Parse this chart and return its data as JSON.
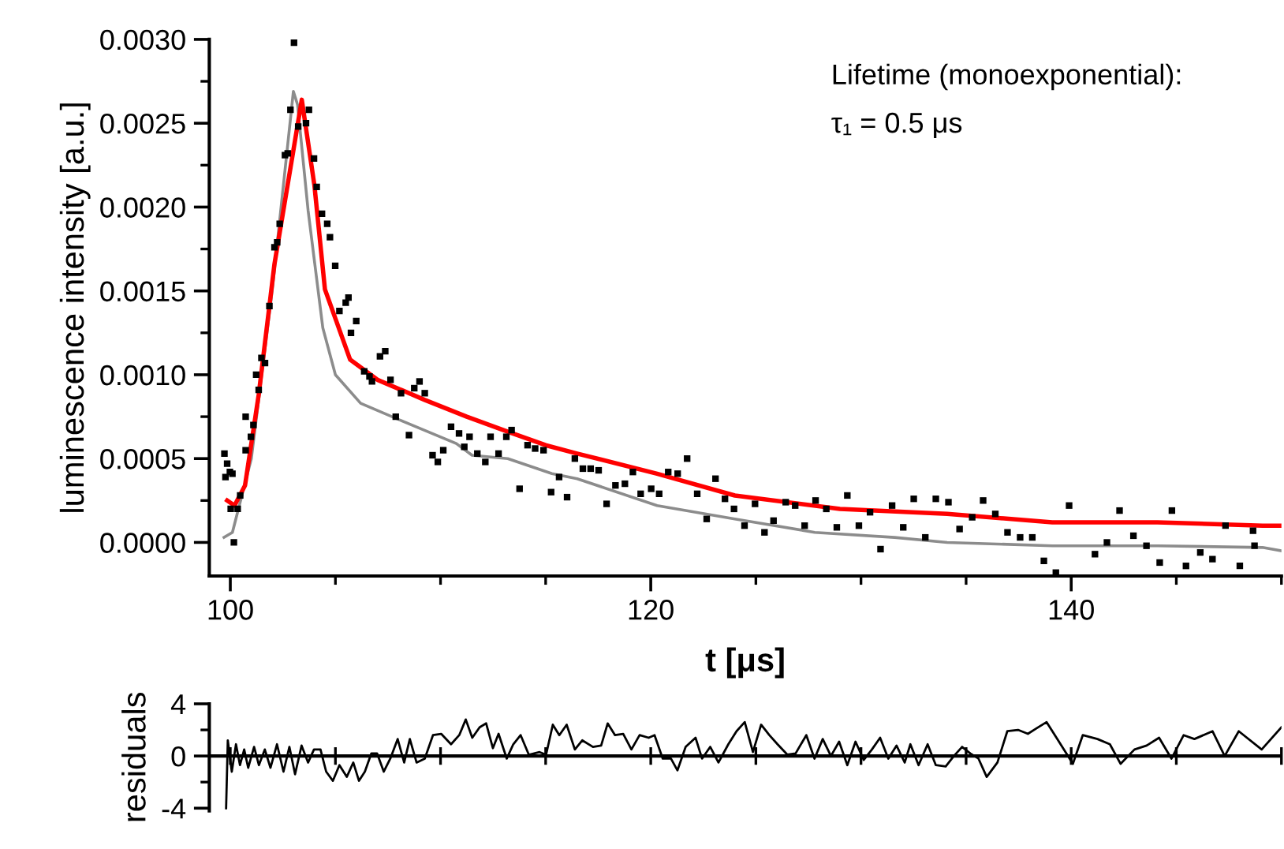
{
  "chart_data": [
    {
      "type": "scatter",
      "xlabel": "t [μs]",
      "ylabel": "luminescence intensity [a.u.]",
      "annotations": [
        "Lifetime (monoexponential):",
        "τ₁ = 0.5 μs"
      ],
      "xlim": [
        99,
        150
      ],
      "xticks": [
        100,
        {
          "value": 105,
          "label": null
        },
        {
          "value": 110,
          "label": null
        },
        {
          "value": 115,
          "label": null
        },
        120,
        {
          "value": 125,
          "label": null
        },
        {
          "value": 130,
          "label": null
        },
        {
          "value": 135,
          "label": null
        },
        140,
        {
          "value": 145,
          "label": null
        },
        {
          "value": 150,
          "label": null
        }
      ],
      "ylim": [
        -0.0002,
        0.003
      ],
      "yticks": [
        {
          "value": 0,
          "label": "0.0000"
        },
        {
          "value": 0.00025,
          "label": null
        },
        {
          "value": 0.0005,
          "label": "0.0005"
        },
        {
          "value": 0.00075,
          "label": null
        },
        {
          "value": 0.001,
          "label": "0.0010"
        },
        {
          "value": 0.00125,
          "label": null
        },
        {
          "value": 0.0015,
          "label": "0.0015"
        },
        {
          "value": 0.00175,
          "label": null
        },
        {
          "value": 0.002,
          "label": "0.0020"
        },
        {
          "value": 0.00225,
          "label": null
        },
        {
          "value": 0.0025,
          "label": "0.0025"
        },
        {
          "value": 0.00275,
          "label": null
        },
        {
          "value": 0.003,
          "label": "0.0030"
        }
      ],
      "grid": false,
      "legend": false,
      "series": [
        {
          "type": "line",
          "color": "#8c8c8c",
          "x": [
            99.7,
            100.1,
            101.0,
            102.0,
            103.0,
            103.2,
            103.7,
            104.4,
            105.0,
            106.2,
            108.25,
            110.75,
            111.5,
            113.2,
            115.3,
            116.5,
            120.3,
            124.0,
            127.8,
            131.6,
            134.1,
            139.1,
            144.1,
            149.1,
            150
          ],
          "values": [
            3e-05,
            6e-05,
            0.0005,
            0.00151,
            0.00269,
            0.00261,
            0.00198,
            0.00128,
            0.001,
            0.00083,
            0.00072,
            0.00059,
            0.00052,
            0.0005,
            0.00041,
            0.00038,
            0.00022,
            0.00014,
            6e-05,
            3e-05,
            0.0,
            -2e-05,
            -2e-05,
            -3e-05,
            -5e-05
          ]
        },
        {
          "type": "scatter",
          "marker": "square",
          "color": "#000000",
          "x": [
            99.72,
            99.85,
            99.77,
            99.98,
            100.1,
            100.17,
            100.02,
            100.35,
            100.47,
            100.73,
            100.73,
            100.98,
            101.1,
            101.23,
            101.35,
            101.48,
            101.65,
            101.86,
            102.1,
            102.23,
            102.35,
            102.6,
            102.73,
            102.86,
            103.03,
            103.23,
            103.6,
            103.74,
            103.98,
            104.11,
            104.36,
            104.61,
            104.74,
            104.99,
            105.19,
            105.49,
            105.62,
            105.74,
            105.99,
            106.37,
            106.62,
            106.74,
            107.12,
            107.37,
            107.62,
            107.87,
            108.12,
            108.5,
            108.75,
            109.0,
            109.25,
            109.62,
            109.87,
            110.13,
            110.5,
            110.88,
            111.13,
            111.38,
            111.75,
            112.13,
            112.38,
            112.76,
            113.13,
            113.38,
            113.76,
            114.14,
            114.5,
            114.9,
            115.26,
            115.64,
            116.02,
            116.39,
            116.77,
            117.14,
            117.52,
            117.9,
            118.32,
            118.77,
            119.15,
            119.52,
            120.02,
            120.4,
            120.83,
            121.28,
            121.73,
            122.21,
            122.66,
            123.08,
            123.53,
            123.96,
            124.46,
            124.96,
            125.41,
            125.84,
            126.42,
            126.87,
            127.32,
            127.84,
            128.35,
            128.85,
            129.35,
            129.9,
            130.43,
            130.93,
            131.48,
            132.01,
            132.51,
            133.06,
            133.56,
            134.16,
            134.69,
            135.29,
            135.81,
            136.39,
            136.97,
            137.57,
            138.15,
            138.7,
            139.27,
            139.9,
            141.13,
            141.7,
            142.3,
            142.96,
            143.58,
            144.21,
            144.79,
            145.46,
            146.14,
            146.72,
            147.34,
            148.02,
            148.65,
            148.72
          ],
          "values": [
            0.00053,
            0.00047,
            0.00039,
            0.00042,
            0.00041,
            0.0,
            0.0002,
            0.0002,
            0.00028,
            0.00055,
            0.00075,
            0.00063,
            0.0007,
            0.001,
            0.00091,
            0.0011,
            0.00107,
            0.00141,
            0.00176,
            0.00179,
            0.0019,
            0.00231,
            0.00232,
            0.00258,
            0.00298,
            0.00248,
            0.0025,
            0.00258,
            0.00229,
            0.00212,
            0.00196,
            0.0019,
            0.00182,
            0.00165,
            0.00138,
            0.00143,
            0.00146,
            0.00125,
            0.00132,
            0.00102,
            0.00099,
            0.00096,
            0.00111,
            0.00114,
            0.00097,
            0.00075,
            0.00089,
            0.00064,
            0.00092,
            0.00096,
            0.00089,
            0.00052,
            0.00048,
            0.00055,
            0.00069,
            0.00065,
            0.00057,
            0.00063,
            0.00053,
            0.00048,
            0.00063,
            0.00053,
            0.00063,
            0.00067,
            0.00032,
            0.00058,
            0.00056,
            0.00055,
            0.0003,
            0.00039,
            0.00027,
            0.0005,
            0.00044,
            0.00044,
            0.00043,
            0.00023,
            0.00034,
            0.00035,
            0.00042,
            0.00029,
            0.00032,
            0.00029,
            0.00042,
            0.00041,
            0.0005,
            0.00029,
            0.00014,
            0.00038,
            0.00026,
            0.0002,
            0.0001,
            0.00023,
            6e-05,
            0.00013,
            0.00024,
            0.00022,
            0.0001,
            0.00025,
            0.0002,
            9e-05,
            0.00028,
            0.0001,
            0.00018,
            -4e-05,
            0.00022,
            9e-05,
            0.00026,
            3e-05,
            0.00026,
            0.00024,
            8e-05,
            0.00015,
            0.00025,
            0.00017,
            6e-05,
            3e-05,
            3e-05,
            -0.00011,
            -0.00018,
            0.00022,
            -7e-05,
            0.0,
            0.00019,
            4e-05,
            -2e-05,
            -0.00012,
            0.00019,
            -0.00014,
            -6e-05,
            -0.0001,
            0.0001,
            -0.00014,
            7e-05,
            -2e-05
          ]
        },
        {
          "type": "line",
          "color": "#ff0000",
          "x": [
            99.85,
            100.2,
            100.7,
            101.35,
            102.1,
            103.4,
            104.0,
            104.5,
            105.7,
            107.0,
            109.25,
            111.25,
            113.2,
            115.0,
            116.5,
            120.3,
            124.0,
            129.0,
            134.1,
            139.1,
            144.1,
            149.1,
            150
          ],
          "values": [
            0.00025,
            0.00022,
            0.00034,
            0.00088,
            0.00166,
            0.00264,
            0.00213,
            0.00151,
            0.00109,
            0.00097,
            0.00085,
            0.00075,
            0.00066,
            0.00058,
            0.00053,
            0.00041,
            0.00028,
            0.0002,
            0.00017,
            0.00012,
            0.00012,
            0.0001,
            0.0001
          ]
        }
      ]
    },
    {
      "type": "line",
      "ylabel": "residuals",
      "tick_labels": "y",
      "grid": false,
      "legend": false,
      "line_style": "solid",
      "ref_lines": [
        {
          "axis": "y",
          "value": 0,
          "color": "#000000"
        }
      ],
      "xlim": [
        99,
        150
      ],
      "xticks": [
        {
          "value": 100,
          "label": null
        },
        {
          "value": 105,
          "label": null
        },
        {
          "value": 110,
          "label": null
        },
        {
          "value": 115,
          "label": null
        },
        {
          "value": 120,
          "label": null
        },
        {
          "value": 125,
          "label": null
        },
        {
          "value": 130,
          "label": null
        },
        {
          "value": 135,
          "label": null
        },
        {
          "value": 140,
          "label": null
        },
        {
          "value": 145,
          "label": null
        },
        {
          "value": 150,
          "label": null
        }
      ],
      "ylim": [
        -4.2,
        4
      ],
      "yticks": [
        -4,
        {
          "value": -2,
          "label": null
        },
        0,
        {
          "value": 2,
          "label": null
        },
        4
      ],
      "series": [
        {
          "color": "#000000",
          "x": [
            99.8,
            99.88,
            100.07,
            100.27,
            100.46,
            100.66,
            100.85,
            101.13,
            101.36,
            101.64,
            101.91,
            102.22,
            102.53,
            102.81,
            103.08,
            103.39,
            103.7,
            103.98,
            104.29,
            104.56,
            104.88,
            105.19,
            105.54,
            105.85,
            106.12,
            106.4,
            106.71,
            106.98,
            107.3,
            107.61,
            107.96,
            108.27,
            108.54,
            108.86,
            109.25,
            109.64,
            110.03,
            110.5,
            110.89,
            111.2,
            111.51,
            111.86,
            112.17,
            112.49,
            112.76,
            113.15,
            113.46,
            113.81,
            114.2,
            114.71,
            115.02,
            115.34,
            115.65,
            116.0,
            116.39,
            116.74,
            117.25,
            117.64,
            117.95,
            118.3,
            118.69,
            119.08,
            119.47,
            119.9,
            120.18,
            120.57,
            120.96,
            121.27,
            121.66,
            122.13,
            122.44,
            122.83,
            123.22,
            123.69,
            124.08,
            124.47,
            124.86,
            125.25,
            125.64,
            126.03,
            126.5,
            126.89,
            127.4,
            127.79,
            128.18,
            128.57,
            128.96,
            129.35,
            129.74,
            130.13,
            130.52,
            130.91,
            131.3,
            131.69,
            132.08,
            132.35,
            132.74,
            133.17,
            133.56,
            134.03,
            134.42,
            134.81,
            135.2,
            135.59,
            135.98,
            136.49,
            136.96,
            137.47,
            137.94,
            138.33,
            138.83,
            139.3,
            140.08,
            140.55,
            141.25,
            141.84,
            142.35,
            143.01,
            143.59,
            144.18,
            144.77,
            145.35,
            145.86,
            146.72,
            147.3,
            147.97,
            149.06,
            150.0
          ],
          "values": [
            -4.0,
            1.2,
            -1.2,
            0.9,
            -0.7,
            0.5,
            -0.9,
            0.7,
            -0.7,
            0.5,
            -0.9,
            0.9,
            -1.2,
            0.7,
            -1.4,
            0.8,
            -0.5,
            0.5,
            0.5,
            -1.2,
            -1.9,
            -0.7,
            -1.6,
            -0.5,
            -1.9,
            -1.2,
            0.2,
            0.2,
            -1.2,
            -0.2,
            1.3,
            -0.5,
            1.3,
            -0.5,
            -0.2,
            1.6,
            1.7,
            0.9,
            1.6,
            2.8,
            1.4,
            2.2,
            2.5,
            0.6,
            1.7,
            -0.2,
            0.9,
            1.6,
            0.1,
            0.3,
            0.1,
            2.4,
            1.6,
            2.4,
            0.5,
            1.2,
            0.7,
            0.8,
            2.5,
            1.6,
            1.7,
            0.5,
            1.6,
            1.4,
            1.6,
            -0.2,
            -0.2,
            -1.1,
            0.7,
            1.4,
            -0.2,
            0.7,
            -0.5,
            0.9,
            1.9,
            2.6,
            0.3,
            2.4,
            1.6,
            0.9,
            0.1,
            0.2,
            1.6,
            -0.2,
            1.3,
            0.0,
            1.1,
            -0.7,
            1.1,
            -0.3,
            0.5,
            1.4,
            -0.2,
            0.8,
            -0.5,
            0.9,
            -0.7,
            0.9,
            -0.7,
            -0.8,
            0.0,
            0.7,
            0.2,
            -0.2,
            -1.6,
            -0.5,
            1.9,
            2.0,
            1.7,
            2.1,
            2.6,
            1.4,
            -0.6,
            1.6,
            1.3,
            0.9,
            -0.6,
            0.5,
            0.8,
            1.4,
            -0.2,
            1.6,
            1.3,
            1.9,
            0.0,
            1.9,
            0.5,
            2.2
          ]
        }
      ]
    }
  ]
}
